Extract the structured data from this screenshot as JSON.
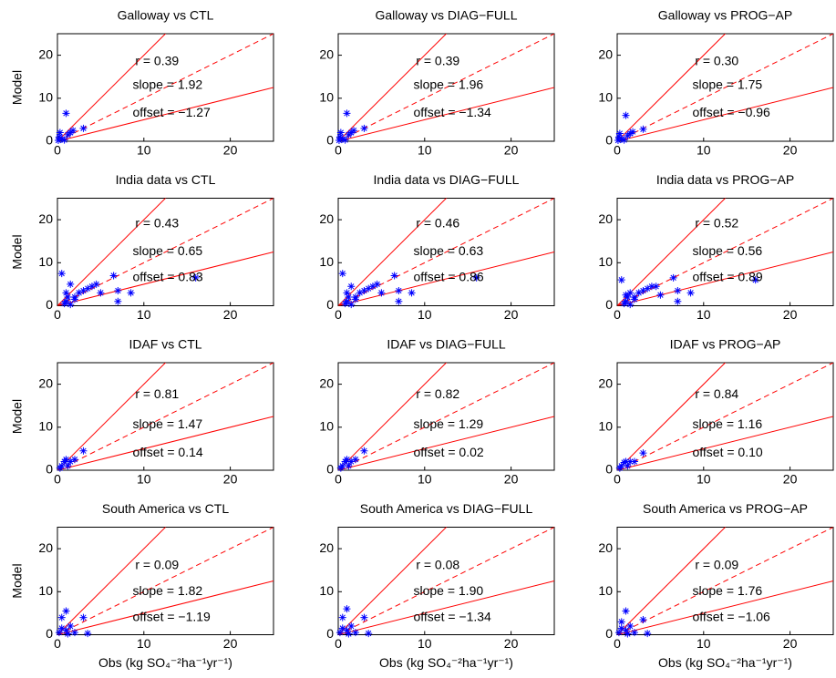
{
  "chart_data": [
    {
      "type": "scatter",
      "title": "Galloway vs CTL",
      "ylabel": "Model",
      "x": [
        0.1,
        0.2,
        0.3,
        0.5,
        0.8,
        1.0,
        1.2,
        1.5,
        1.8,
        3.0
      ],
      "y": [
        0.2,
        1.0,
        2.0,
        0.5,
        0.3,
        6.5,
        1.5,
        2.0,
        2.5,
        3.0
      ],
      "annotations": [
        "r = 0.39",
        "slope = 1.92",
        "offset = −1.27"
      ],
      "xlim": [
        0,
        25
      ],
      "ylim": [
        0,
        25
      ],
      "xticks": [
        0,
        10,
        20
      ],
      "yticks": [
        0,
        10,
        20
      ],
      "color": "#0000ff",
      "line_color": "#ff0000",
      "ref_lines": [
        {
          "slope": 2,
          "dashed": false
        },
        {
          "slope": 1,
          "dashed": true
        },
        {
          "slope": 0.5,
          "dashed": false
        }
      ]
    },
    {
      "type": "scatter",
      "title": "Galloway vs DIAG−FULL",
      "x": [
        0.1,
        0.2,
        0.3,
        0.5,
        0.8,
        1.0,
        1.2,
        1.5,
        1.8,
        3.0
      ],
      "y": [
        0.2,
        1.0,
        2.0,
        0.5,
        0.3,
        6.5,
        1.5,
        2.0,
        2.5,
        3.0
      ],
      "annotations": [
        "r = 0.39",
        "slope = 1.96",
        "offset = −1.34"
      ],
      "xlim": [
        0,
        25
      ],
      "ylim": [
        0,
        25
      ],
      "xticks": [
        0,
        10,
        20
      ],
      "yticks": [
        0,
        10,
        20
      ],
      "color": "#0000ff",
      "line_color": "#ff0000",
      "ref_lines": [
        {
          "slope": 2,
          "dashed": false
        },
        {
          "slope": 1,
          "dashed": true
        },
        {
          "slope": 0.5,
          "dashed": false
        }
      ]
    },
    {
      "type": "scatter",
      "title": "Galloway vs PROG−AP",
      "x": [
        0.1,
        0.2,
        0.3,
        0.5,
        0.8,
        1.0,
        1.2,
        1.5,
        1.8,
        3.0
      ],
      "y": [
        0.2,
        1.0,
        1.8,
        0.5,
        0.3,
        6.0,
        1.3,
        1.8,
        2.2,
        2.8
      ],
      "annotations": [
        "r = 0.30",
        "slope = 1.75",
        "offset = −0.96"
      ],
      "xlim": [
        0,
        25
      ],
      "ylim": [
        0,
        25
      ],
      "xticks": [
        0,
        10,
        20
      ],
      "yticks": [
        0,
        10,
        20
      ],
      "color": "#0000ff",
      "line_color": "#ff0000",
      "ref_lines": [
        {
          "slope": 2,
          "dashed": false
        },
        {
          "slope": 1,
          "dashed": true
        },
        {
          "slope": 0.5,
          "dashed": false
        }
      ]
    },
    {
      "type": "scatter",
      "title": "India data vs CTL",
      "ylabel": "Model",
      "x": [
        0.5,
        0.8,
        1.0,
        1.0,
        1.2,
        1.5,
        1.5,
        2.0,
        2.0,
        2.5,
        3.0,
        3.5,
        4.0,
        4.5,
        5.0,
        6.5,
        7.0,
        7.0,
        8.5,
        16.0
      ],
      "y": [
        7.5,
        0.5,
        1.0,
        3.0,
        2.0,
        5.0,
        0.3,
        2.0,
        1.5,
        3.0,
        3.5,
        4.0,
        4.5,
        5.0,
        3.0,
        7.0,
        1.0,
        3.5,
        3.0,
        6.5
      ],
      "annotations": [
        "r = 0.43",
        "slope = 0.65",
        "offset = 0.83"
      ],
      "xlim": [
        0,
        25
      ],
      "ylim": [
        0,
        25
      ],
      "xticks": [
        0,
        10,
        20
      ],
      "yticks": [
        0,
        10,
        20
      ],
      "color": "#0000ff",
      "line_color": "#ff0000",
      "ref_lines": [
        {
          "slope": 2,
          "dashed": false
        },
        {
          "slope": 1,
          "dashed": true
        },
        {
          "slope": 0.5,
          "dashed": false
        }
      ]
    },
    {
      "type": "scatter",
      "title": "India data vs DIAG−FULL",
      "x": [
        0.5,
        0.8,
        1.0,
        1.0,
        1.2,
        1.5,
        1.5,
        2.0,
        2.0,
        2.5,
        3.0,
        3.5,
        4.0,
        4.5,
        5.0,
        6.5,
        7.0,
        7.0,
        8.5,
        16.0
      ],
      "y": [
        7.5,
        0.5,
        1.0,
        3.0,
        2.0,
        4.5,
        0.3,
        2.0,
        1.5,
        3.0,
        3.5,
        4.0,
        4.5,
        5.0,
        3.0,
        7.0,
        1.0,
        3.5,
        3.0,
        6.5
      ],
      "annotations": [
        "r = 0.46",
        "slope = 0.63",
        "offset = 0.86"
      ],
      "xlim": [
        0,
        25
      ],
      "ylim": [
        0,
        25
      ],
      "xticks": [
        0,
        10,
        20
      ],
      "yticks": [
        0,
        10,
        20
      ],
      "color": "#0000ff",
      "line_color": "#ff0000",
      "ref_lines": [
        {
          "slope": 2,
          "dashed": false
        },
        {
          "slope": 1,
          "dashed": true
        },
        {
          "slope": 0.5,
          "dashed": false
        }
      ]
    },
    {
      "type": "scatter",
      "title": "India data vs PROG−AP",
      "x": [
        0.5,
        0.8,
        1.0,
        1.0,
        1.2,
        1.5,
        1.5,
        2.0,
        2.0,
        2.5,
        3.0,
        3.5,
        4.0,
        4.5,
        5.0,
        6.5,
        7.0,
        7.0,
        8.5,
        16.0
      ],
      "y": [
        6.0,
        0.5,
        1.0,
        2.5,
        2.0,
        3.0,
        0.3,
        2.0,
        1.5,
        3.0,
        3.5,
        4.0,
        4.5,
        4.5,
        2.5,
        6.5,
        1.0,
        3.5,
        3.0,
        6.0
      ],
      "annotations": [
        "r = 0.52",
        "slope = 0.56",
        "offset = 0.89"
      ],
      "xlim": [
        0,
        25
      ],
      "ylim": [
        0,
        25
      ],
      "xticks": [
        0,
        10,
        20
      ],
      "yticks": [
        0,
        10,
        20
      ],
      "color": "#0000ff",
      "line_color": "#ff0000",
      "ref_lines": [
        {
          "slope": 2,
          "dashed": false
        },
        {
          "slope": 1,
          "dashed": true
        },
        {
          "slope": 0.5,
          "dashed": false
        }
      ]
    },
    {
      "type": "scatter",
      "title": "IDAF vs CTL",
      "ylabel": "Model",
      "x": [
        0.3,
        0.5,
        0.8,
        1.0,
        1.2,
        1.5,
        2.0,
        3.0
      ],
      "y": [
        0.5,
        1.0,
        2.0,
        2.5,
        1.0,
        2.0,
        2.5,
        4.5
      ],
      "annotations": [
        "r = 0.81",
        "slope = 1.47",
        "offset = 0.14"
      ],
      "xlim": [
        0,
        25
      ],
      "ylim": [
        0,
        25
      ],
      "xticks": [
        0,
        10,
        20
      ],
      "yticks": [
        0,
        10,
        20
      ],
      "color": "#0000ff",
      "line_color": "#ff0000",
      "ref_lines": [
        {
          "slope": 2,
          "dashed": false
        },
        {
          "slope": 1,
          "dashed": true
        },
        {
          "slope": 0.5,
          "dashed": false
        }
      ]
    },
    {
      "type": "scatter",
      "title": "IDAF vs DIAG−FULL",
      "x": [
        0.3,
        0.5,
        0.8,
        1.0,
        1.2,
        1.5,
        2.0,
        3.0
      ],
      "y": [
        0.5,
        1.0,
        2.0,
        2.5,
        1.0,
        2.0,
        2.5,
        4.5
      ],
      "annotations": [
        "r = 0.82",
        "slope = 1.29",
        "offset = 0.02"
      ],
      "xlim": [
        0,
        25
      ],
      "ylim": [
        0,
        25
      ],
      "xticks": [
        0,
        10,
        20
      ],
      "yticks": [
        0,
        10,
        20
      ],
      "color": "#0000ff",
      "line_color": "#ff0000",
      "ref_lines": [
        {
          "slope": 2,
          "dashed": false
        },
        {
          "slope": 1,
          "dashed": true
        },
        {
          "slope": 0.5,
          "dashed": false
        }
      ]
    },
    {
      "type": "scatter",
      "title": "IDAF vs PROG−AP",
      "x": [
        0.3,
        0.5,
        0.8,
        1.0,
        1.2,
        1.5,
        2.0,
        3.0
      ],
      "y": [
        0.5,
        1.0,
        1.8,
        2.0,
        1.0,
        2.0,
        2.0,
        4.0
      ],
      "annotations": [
        "r = 0.84",
        "slope = 1.16",
        "offset = 0.10"
      ],
      "xlim": [
        0,
        25
      ],
      "ylim": [
        0,
        25
      ],
      "xticks": [
        0,
        10,
        20
      ],
      "yticks": [
        0,
        10,
        20
      ],
      "color": "#0000ff",
      "line_color": "#ff0000",
      "ref_lines": [
        {
          "slope": 2,
          "dashed": false
        },
        {
          "slope": 1,
          "dashed": true
        },
        {
          "slope": 0.5,
          "dashed": false
        }
      ]
    },
    {
      "type": "scatter",
      "title": "South America vs CTL",
      "ylabel": "Model",
      "xlabel": "Obs (kg SO₄⁻²ha⁻¹yr⁻¹)",
      "x": [
        0.2,
        0.5,
        0.5,
        1.0,
        1.0,
        1.2,
        1.5,
        2.0,
        3.0,
        3.5
      ],
      "y": [
        0.5,
        4.0,
        1.5,
        5.5,
        1.0,
        0.2,
        2.0,
        0.5,
        4.0,
        0.3
      ],
      "annotations": [
        "r = 0.09",
        "slope = 1.82",
        "offset = −1.19"
      ],
      "xlim": [
        0,
        25
      ],
      "ylim": [
        0,
        25
      ],
      "xticks": [
        0,
        10,
        20
      ],
      "yticks": [
        0,
        10,
        20
      ],
      "color": "#0000ff",
      "line_color": "#ff0000",
      "ref_lines": [
        {
          "slope": 2,
          "dashed": false
        },
        {
          "slope": 1,
          "dashed": true
        },
        {
          "slope": 0.5,
          "dashed": false
        }
      ]
    },
    {
      "type": "scatter",
      "title": "South America vs DIAG−FULL",
      "xlabel": "Obs (kg SO₄⁻²ha⁻¹yr⁻¹)",
      "x": [
        0.2,
        0.5,
        0.5,
        1.0,
        1.0,
        1.2,
        1.5,
        2.0,
        3.0,
        3.5
      ],
      "y": [
        0.5,
        4.0,
        1.5,
        6.0,
        1.0,
        0.2,
        2.0,
        0.5,
        4.0,
        0.3
      ],
      "annotations": [
        "r = 0.08",
        "slope = 1.90",
        "offset = −1.34"
      ],
      "xlim": [
        0,
        25
      ],
      "ylim": [
        0,
        25
      ],
      "xticks": [
        0,
        10,
        20
      ],
      "yticks": [
        0,
        10,
        20
      ],
      "color": "#0000ff",
      "line_color": "#ff0000",
      "ref_lines": [
        {
          "slope": 2,
          "dashed": false
        },
        {
          "slope": 1,
          "dashed": true
        },
        {
          "slope": 0.5,
          "dashed": false
        }
      ]
    },
    {
      "type": "scatter",
      "title": "South America vs PROG−AP",
      "xlabel": "Obs (kg SO₄⁻²ha⁻¹yr⁻¹)",
      "x": [
        0.2,
        0.5,
        0.5,
        1.0,
        1.0,
        1.2,
        1.5,
        2.0,
        3.0,
        3.5
      ],
      "y": [
        0.5,
        3.0,
        1.5,
        5.5,
        1.0,
        0.2,
        2.0,
        0.5,
        3.5,
        0.3
      ],
      "annotations": [
        "r = 0.09",
        "slope = 1.76",
        "offset = −1.06"
      ],
      "xlim": [
        0,
        25
      ],
      "ylim": [
        0,
        25
      ],
      "xticks": [
        0,
        10,
        20
      ],
      "yticks": [
        0,
        10,
        20
      ],
      "color": "#0000ff",
      "line_color": "#ff0000",
      "ref_lines": [
        {
          "slope": 2,
          "dashed": false
        },
        {
          "slope": 1,
          "dashed": true
        },
        {
          "slope": 0.5,
          "dashed": false
        }
      ]
    }
  ]
}
